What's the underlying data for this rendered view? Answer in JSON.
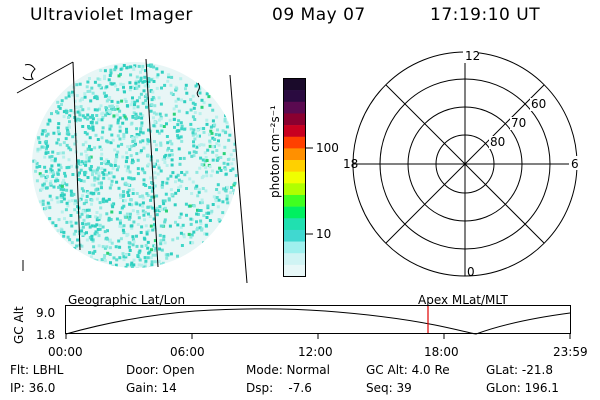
{
  "header": {
    "instrument": "Ultraviolet Imager",
    "date": "09 May 07",
    "time": "17:19:10 UT"
  },
  "colorbar": {
    "label": "photon cm⁻²s⁻¹",
    "ticks": [
      "100",
      "10"
    ],
    "colors": [
      "#1a0a2a",
      "#2a0a40",
      "#5a0a50",
      "#8a0030",
      "#c80020",
      "#ff4000",
      "#ff9000",
      "#ffd000",
      "#f0ff00",
      "#b0ff00",
      "#40ff20",
      "#00f060",
      "#20e0b0",
      "#40d8d0",
      "#9ff0ee",
      "#d0f4f4",
      "#e8f8f8"
    ]
  },
  "polar": {
    "lat_labels": [
      "60",
      "70",
      "80"
    ],
    "mlt_labels": {
      "top": "12",
      "left": "18",
      "right": "6",
      "bottom": "0"
    }
  },
  "track": {
    "left_label": "Geographic Lat/Lon",
    "right_label": "Apex  MLat/MLT",
    "yaxis_label": "GC Alt",
    "yticks": [
      "9.0",
      "1.8"
    ],
    "xticks": [
      "00:00",
      "06:00",
      "12:00",
      "18:00",
      "23:59"
    ],
    "marker_color": "#e00000"
  },
  "info": {
    "filter": "Flt: LBHL",
    "ip": "IP: 36.0",
    "door": "Door: Open",
    "gain": "Gain: 14",
    "mode": "Mode: Normal",
    "dsp": "Dsp:    -7.6",
    "gc_alt": "GC Alt: 4.0 Re",
    "seq": "Seq: 39",
    "glat": "GLat: -21.8",
    "glon": "GLon: 196.1"
  }
}
